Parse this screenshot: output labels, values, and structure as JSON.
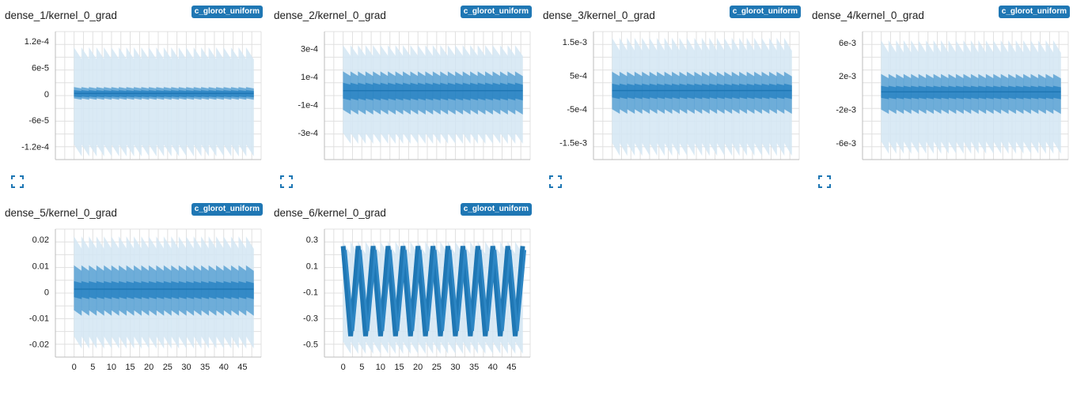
{
  "run_tag": "c_glorot_uniform",
  "chart_data": [
    {
      "title": "dense_1/kernel_0_grad",
      "type": "area",
      "yticks": [
        {
          "v": 1.2,
          "t": "1.2e-4"
        },
        {
          "v": 0.6,
          "t": "6e-5"
        },
        {
          "v": 0,
          "t": "0"
        },
        {
          "v": -0.6,
          "t": "-6e-5"
        },
        {
          "v": -1.2,
          "t": "-1.2e-4"
        }
      ],
      "ylim": [
        -1.5,
        1.42
      ],
      "outer": [
        -1.15,
        1.05
      ],
      "mid": [
        -0.1,
        0.15
      ],
      "inner": [
        -0.06,
        0.08
      ],
      "show_x": false,
      "legend": "c_glorot_uniform"
    },
    {
      "title": "dense_2/kernel_0_grad",
      "type": "area",
      "yticks": [
        {
          "v": 3,
          "t": "3e-4"
        },
        {
          "v": 1,
          "t": "1e-4"
        },
        {
          "v": -1,
          "t": "-1e-4"
        },
        {
          "v": -3,
          "t": "-3e-4"
        }
      ],
      "ylim": [
        -4.9,
        4.2
      ],
      "outer": [
        -3,
        3.2
      ],
      "mid": [
        -1.35,
        1.35
      ],
      "inner": [
        -0.55,
        0.55
      ],
      "show_x": false,
      "legend": "c_glorot_uniform"
    },
    {
      "title": "dense_3/kernel_0_grad",
      "type": "area",
      "yticks": [
        {
          "v": 1.5,
          "t": "1.5e-3"
        },
        {
          "v": 0.5,
          "t": "5e-4"
        },
        {
          "v": -0.5,
          "t": "-5e-4"
        },
        {
          "v": -1.5,
          "t": "-1.5e-3"
        }
      ],
      "ylim": [
        -2,
        1.8
      ],
      "outer": [
        -1.5,
        1.6
      ],
      "mid": [
        -0.5,
        0.6
      ],
      "inner": [
        -0.15,
        0.25
      ],
      "show_x": false,
      "legend": "c_glorot_uniform"
    },
    {
      "title": "dense_4/kernel_0_grad",
      "type": "area",
      "yticks": [
        {
          "v": 6,
          "t": "6e-3"
        },
        {
          "v": 2,
          "t": "2e-3"
        },
        {
          "v": -2,
          "t": "-2e-3"
        },
        {
          "v": -6,
          "t": "-6e-3"
        }
      ],
      "ylim": [
        -8,
        7.3
      ],
      "outer": [
        -5.8,
        6.2
      ],
      "mid": [
        -2,
        2.2
      ],
      "inner": [
        -0.6,
        0.8
      ],
      "show_x": false,
      "legend": "c_glorot_uniform"
    },
    {
      "title": "dense_5/kernel_0_grad",
      "type": "area",
      "yticks": [
        {
          "v": 0.02,
          "t": "0.02"
        },
        {
          "v": 0.01,
          "t": "0.01"
        },
        {
          "v": 0,
          "t": "0"
        },
        {
          "v": -0.01,
          "t": "-0.01"
        },
        {
          "v": -0.02,
          "t": "-0.02"
        }
      ],
      "ylim": [
        -0.025,
        0.024
      ],
      "outer": [
        -0.017,
        0.021
      ],
      "mid": [
        -0.007,
        0.01
      ],
      "inner": [
        -0.002,
        0.004
      ],
      "show_x": true,
      "legend": "c_glorot_uniform"
    },
    {
      "title": "dense_6/kernel_0_grad",
      "type": "area",
      "yticks": [
        {
          "v": 0.3,
          "t": "0.3"
        },
        {
          "v": 0.1,
          "t": "0.1"
        },
        {
          "v": -0.1,
          "t": "-0.1"
        },
        {
          "v": -0.3,
          "t": "-0.3"
        },
        {
          "v": -0.5,
          "t": "-0.5"
        }
      ],
      "ylim": [
        -0.6,
        0.38
      ],
      "outer": [
        -0.48,
        0.28
      ],
      "mid": [
        -0.44,
        0.25
      ],
      "inner": [
        -0.4,
        0.22
      ],
      "show_x": true,
      "sawtooth": true,
      "legend": "c_glorot_uniform"
    }
  ],
  "x_axis": {
    "min": -5,
    "max": 50,
    "ticks": [
      0,
      5,
      10,
      15,
      20,
      25,
      30,
      35,
      40,
      45
    ]
  },
  "colors": {
    "band_outer": "#d4e6f3",
    "band_mid": "#5aa2d3",
    "band_inner": "#2d86c4",
    "line": "#1f77b4",
    "grid": "#e0e0e0"
  },
  "icons": {
    "expand": "fullscreen-icon"
  }
}
